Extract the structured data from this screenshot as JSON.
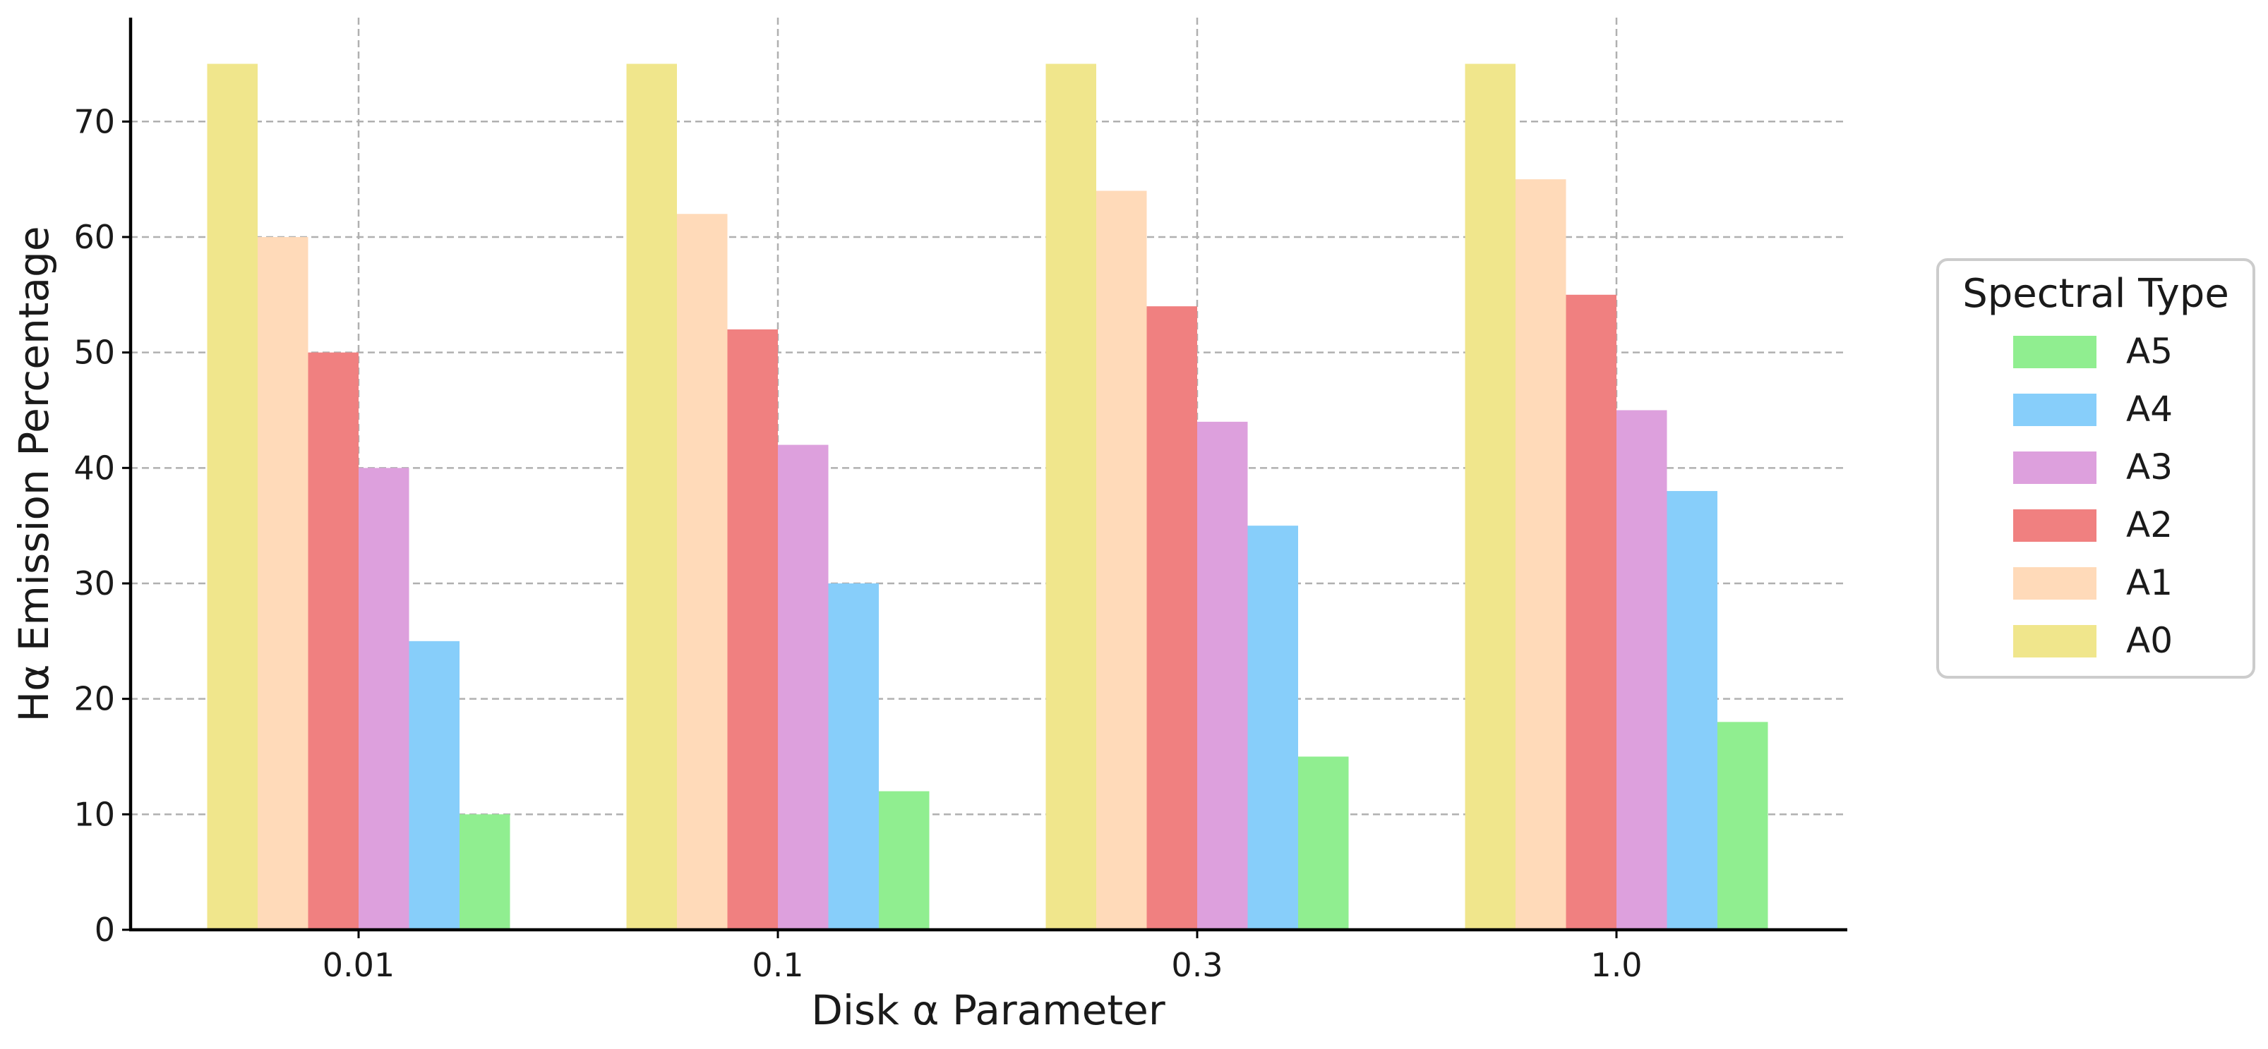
{
  "chart_data": {
    "type": "bar",
    "title": "",
    "xlabel": "Disk α Parameter",
    "ylabel": "Hα Emission Percentage",
    "categories": [
      "0.01",
      "0.1",
      "0.3",
      "1.0"
    ],
    "ylim": [
      0,
      79
    ],
    "yticks": [
      0,
      10,
      20,
      30,
      40,
      50,
      60,
      70
    ],
    "grid": true,
    "legend": {
      "title": "Spectral Type",
      "position": "outside-right",
      "order": [
        "A5",
        "A4",
        "A3",
        "A2",
        "A1",
        "A0"
      ]
    },
    "series": [
      {
        "name": "A0",
        "color": "#f0e68c",
        "values": [
          75,
          75,
          75,
          75
        ]
      },
      {
        "name": "A1",
        "color": "#ffdab9",
        "values": [
          60,
          62,
          64,
          65
        ]
      },
      {
        "name": "A2",
        "color": "#f08080",
        "values": [
          50,
          52,
          54,
          55
        ]
      },
      {
        "name": "A3",
        "color": "#dda0dd",
        "values": [
          40,
          42,
          44,
          45
        ]
      },
      {
        "name": "A4",
        "color": "#87cefa",
        "values": [
          25,
          30,
          35,
          38
        ]
      },
      {
        "name": "A5",
        "color": "#90ee90",
        "values": [
          10,
          12,
          15,
          18
        ]
      }
    ]
  }
}
